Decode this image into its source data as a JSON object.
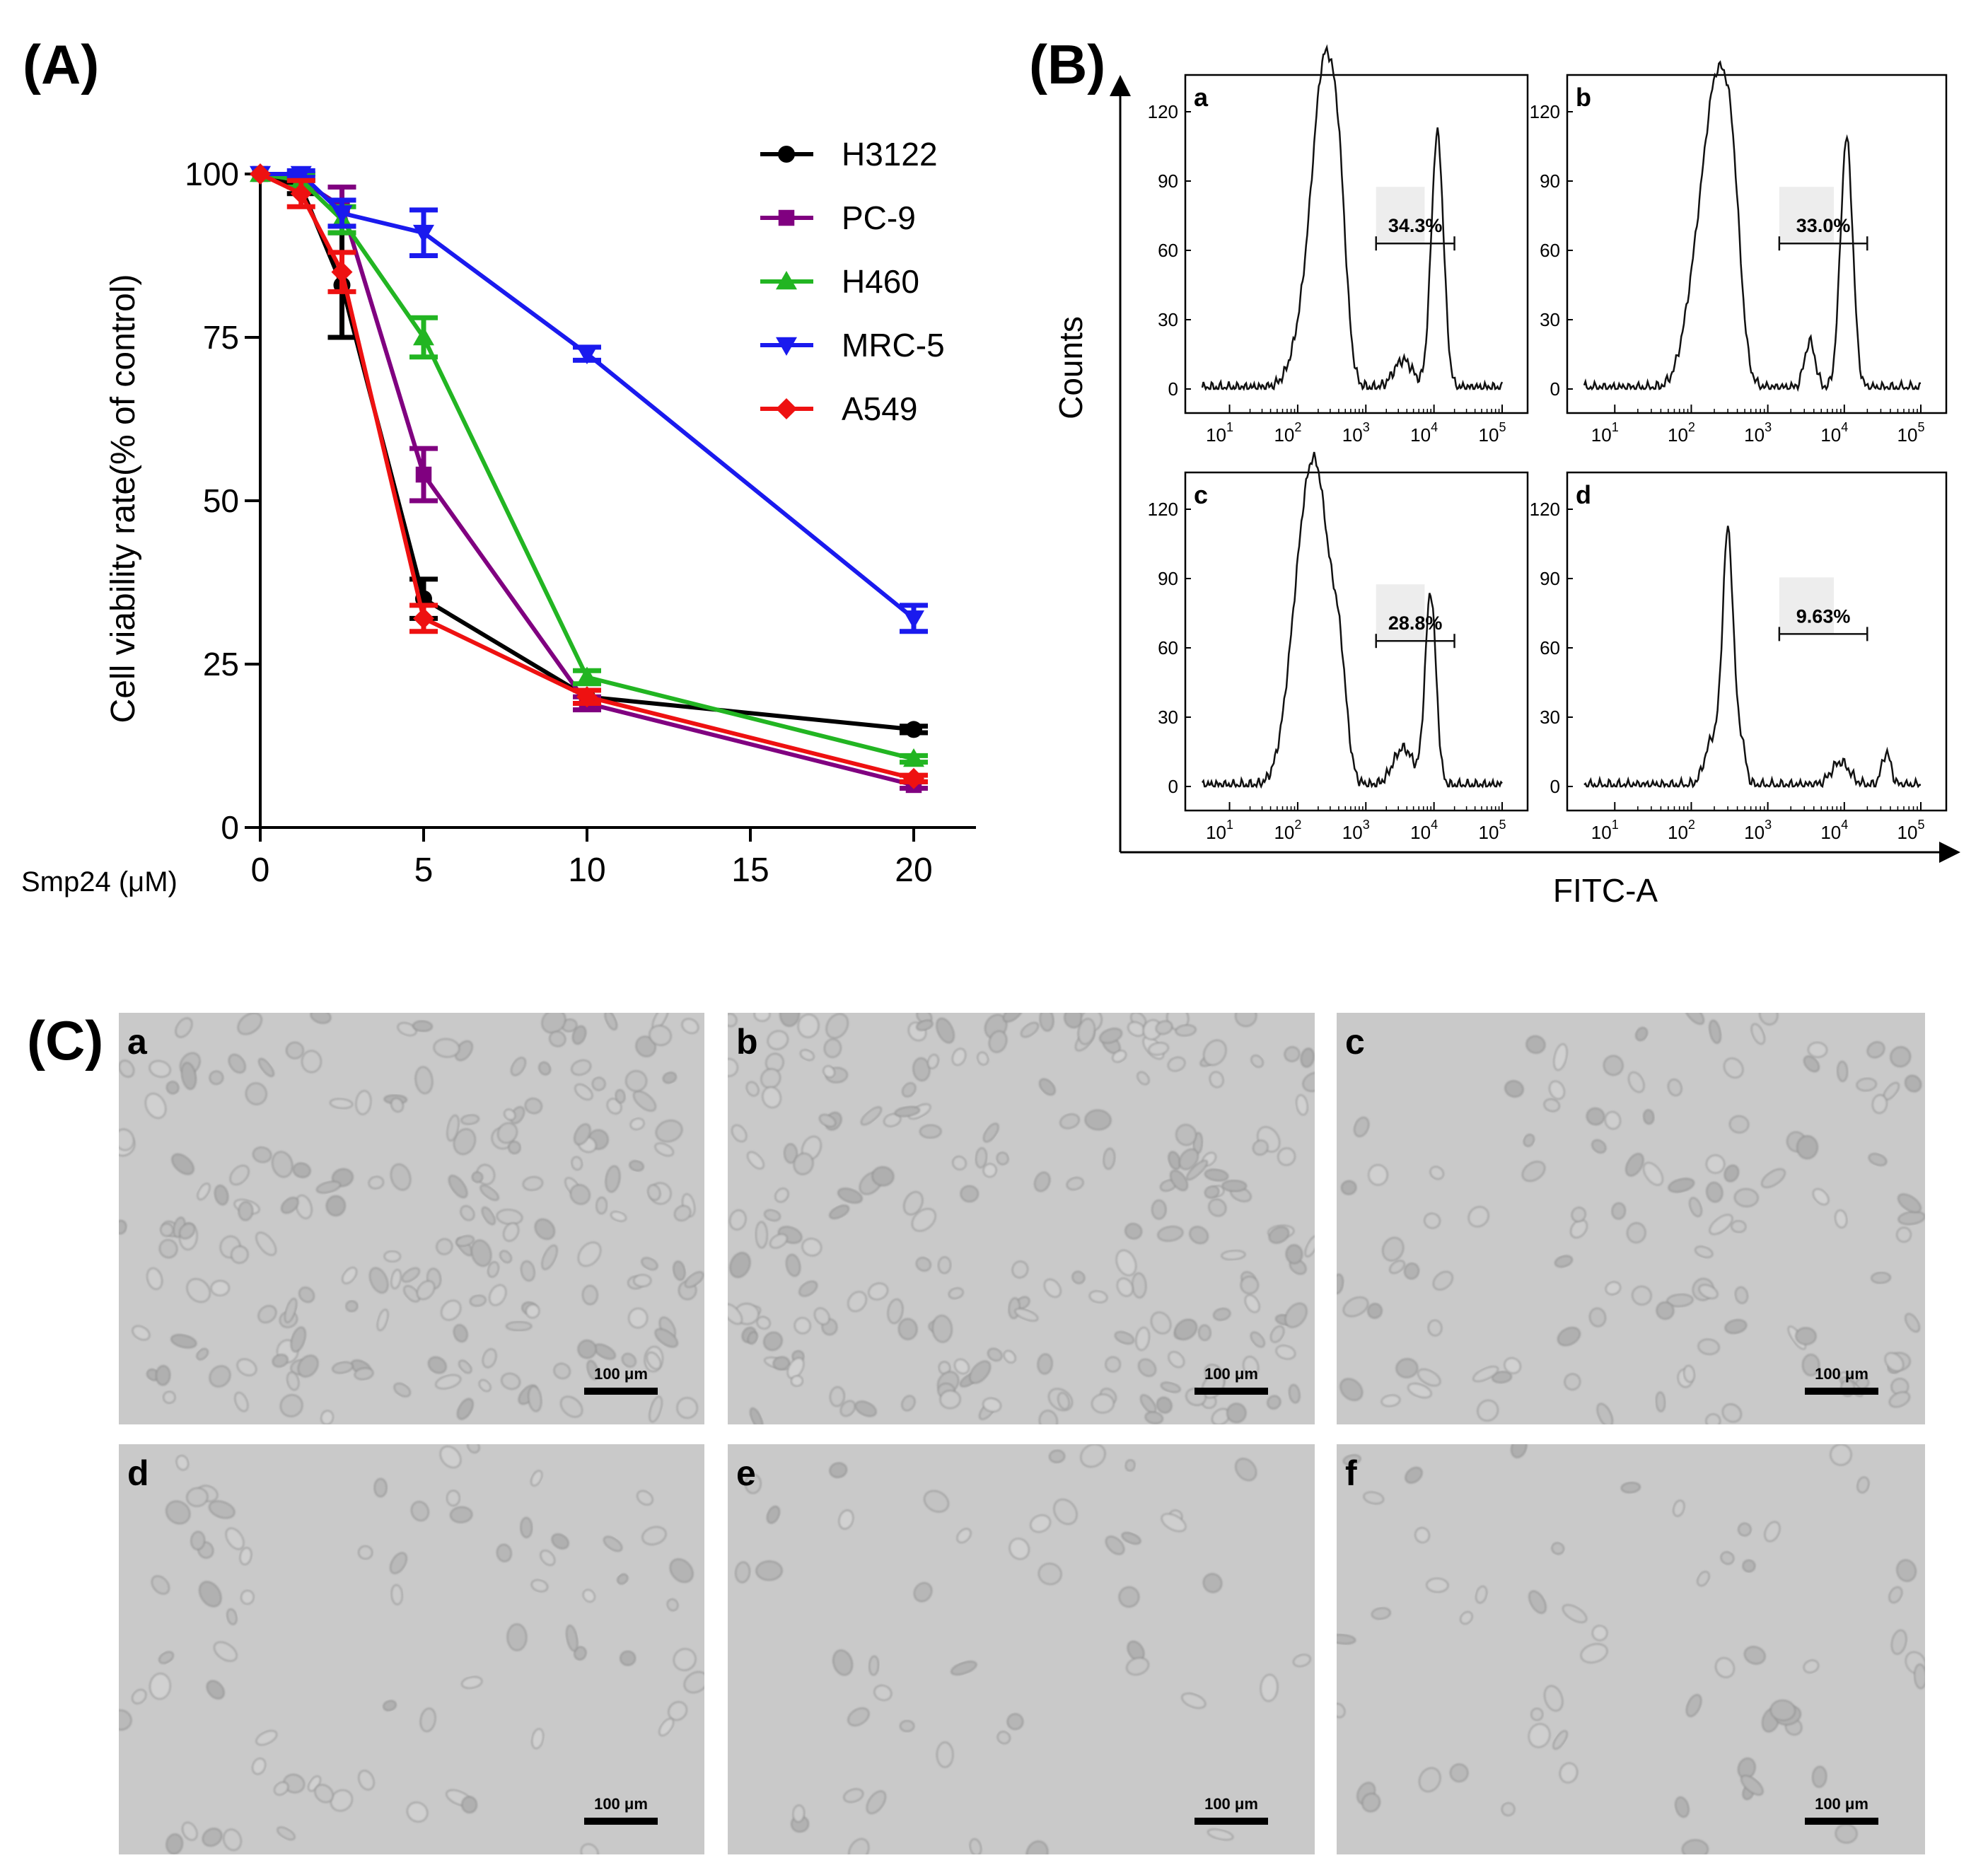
{
  "panel_labels": {
    "A": "(A)",
    "B": "(B)",
    "C": "(C)"
  },
  "colors": {
    "H3122": "#000000",
    "PC-9": "#800080",
    "H460": "#22b522",
    "MRC-5": "#1a1aee",
    "A549": "#ee1111",
    "micro_bg": "#c9c9c9"
  },
  "chart_data": [
    {
      "id": "viability",
      "type": "line",
      "title": "",
      "xlabel": "Smp24 (μM)",
      "ylabel": "Cell viability rate(% of control)",
      "x": [
        0,
        1.25,
        2.5,
        5,
        10,
        20
      ],
      "xticks": [
        0,
        5,
        10,
        15,
        20
      ],
      "yticks": [
        0,
        25,
        50,
        75,
        100
      ],
      "xlim": [
        0,
        22
      ],
      "ylim": [
        0,
        100
      ],
      "legend_position": "top-right",
      "series": [
        {
          "name": "H3122",
          "marker": "circle",
          "values": [
            100,
            98,
            83,
            35,
            20,
            15
          ],
          "err": [
            0,
            1,
            8,
            3,
            1,
            0.5
          ]
        },
        {
          "name": "PC-9",
          "marker": "square",
          "values": [
            100,
            99,
            95,
            54,
            19,
            6.5
          ],
          "err": [
            0,
            1,
            3,
            4,
            1,
            0.5
          ]
        },
        {
          "name": "H460",
          "marker": "triangle",
          "values": [
            100,
            99,
            93,
            75,
            23,
            10.5
          ],
          "err": [
            0,
            1,
            2,
            3,
            1,
            0.5
          ]
        },
        {
          "name": "MRC-5",
          "marker": "triangle-down",
          "values": [
            100,
            100,
            94,
            91,
            72.5,
            32
          ],
          "err": [
            0,
            0.5,
            2,
            3.5,
            1,
            2
          ]
        },
        {
          "name": "A549",
          "marker": "diamond",
          "values": [
            100,
            97,
            85,
            32,
            20,
            7.5
          ],
          "err": [
            0,
            2,
            3,
            2,
            1,
            0.5
          ]
        }
      ]
    },
    {
      "id": "flow",
      "type": "histogram",
      "xlabel": "FITC-A",
      "ylabel": "Counts",
      "yticks": [
        "0",
        "30",
        "60",
        "90",
        "120"
      ],
      "xtick_base": "10",
      "xtick_exponents": [
        "1",
        "2",
        "3",
        "4",
        "5"
      ],
      "panels": [
        {
          "label": "a",
          "percent": "34.3%",
          "peaks": [
            [
              2.2,
              38,
              0.21
            ],
            [
              2.42,
              118,
              0.17
            ],
            [
              2.62,
              42,
              0.1
            ],
            [
              3.55,
              12,
              0.14
            ],
            [
              4.05,
              110,
              0.09
            ]
          ]
        },
        {
          "label": "b",
          "percent": "33.0%",
          "peaks": [
            [
              2.08,
              42,
              0.17
            ],
            [
              2.36,
              121,
              0.17
            ],
            [
              2.55,
              42,
              0.1
            ],
            [
              3.55,
              20,
              0.07
            ],
            [
              4.03,
              108,
              0.08
            ]
          ]
        },
        {
          "label": "c",
          "percent": "28.8%",
          "peaks": [
            [
              2.05,
              70,
              0.2
            ],
            [
              2.32,
              105,
              0.2
            ],
            [
              2.62,
              34,
              0.1
            ],
            [
              3.55,
              16,
              0.15
            ],
            [
              3.95,
              83,
              0.08
            ]
          ]
        },
        {
          "label": "d",
          "percent": "9.63%",
          "peaks": [
            [
              2.28,
              20,
              0.1
            ],
            [
              2.48,
              108,
              0.07
            ],
            [
              2.65,
              18,
              0.06
            ],
            [
              3.95,
              10,
              0.12
            ],
            [
              4.55,
              14,
              0.06
            ]
          ]
        }
      ]
    }
  ],
  "micrographs": [
    {
      "label": "a",
      "scale": "100 μm",
      "density": 190
    },
    {
      "label": "b",
      "scale": "100 μm",
      "density": 210
    },
    {
      "label": "c",
      "scale": "100 μm",
      "density": 110
    },
    {
      "label": "d",
      "scale": "100 μm",
      "density": 70
    },
    {
      "label": "e",
      "scale": "100 μm",
      "density": 45
    },
    {
      "label": "f",
      "scale": "100 μm",
      "density": 55
    }
  ]
}
